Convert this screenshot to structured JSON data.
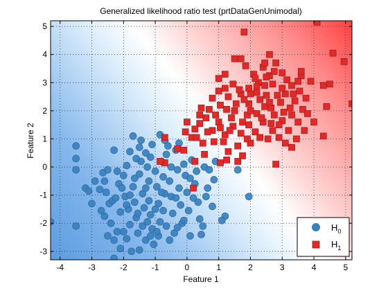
{
  "chart_data": {
    "type": "scatter",
    "title": "Generalized likelihood ratio test (prtDataGenUnimodal)",
    "xlabel": "Feature 1",
    "ylabel": "Feature 2",
    "xlim": [
      -4.3,
      5.2
    ],
    "ylim": [
      -3.3,
      5.2
    ],
    "xticks": [
      -4,
      -3,
      -2,
      -1,
      0,
      1,
      2,
      3,
      4,
      5
    ],
    "yticks": [
      -3,
      -2,
      -1,
      0,
      1,
      2,
      3,
      4,
      5
    ],
    "grid": true,
    "legend_position": "bottom-right",
    "background": "decision surface: blue (H0 region, lower-left) to red (H1 region, upper-right)",
    "series": [
      {
        "name": "H0",
        "label_base": "H",
        "label_sub": "0",
        "marker": "circle",
        "color": "#3a80bd",
        "points": [
          [
            -3.5,
            0.75
          ],
          [
            -3.5,
            0.3
          ],
          [
            -3.5,
            -0.1
          ],
          [
            -3.2,
            -0.75
          ],
          [
            -3.1,
            -0.85
          ],
          [
            -3.0,
            -1.3
          ],
          [
            -2.9,
            -0.5
          ],
          [
            -3.5,
            -2.1
          ],
          [
            -4.3,
            -1.95
          ],
          [
            -2.65,
            -0.2
          ],
          [
            -2.6,
            -0.5
          ],
          [
            -2.5,
            -0.1
          ],
          [
            -2.55,
            -0.9
          ],
          [
            -2.45,
            -1.3
          ],
          [
            -2.6,
            -1.75
          ],
          [
            -2.3,
            0.6
          ],
          [
            -2.2,
            -0.15
          ],
          [
            -2.15,
            -0.6
          ],
          [
            -2.35,
            -1.2
          ],
          [
            -2.1,
            -1.6
          ],
          [
            -2.4,
            -2.0
          ],
          [
            -2.2,
            -2.3
          ],
          [
            -2.5,
            -2.45
          ],
          [
            -2.3,
            -2.6
          ],
          [
            -2.1,
            -2.9
          ],
          [
            -2.0,
            -0.3
          ],
          [
            -1.9,
            0.05
          ],
          [
            -1.95,
            -1.05
          ],
          [
            -1.85,
            -1.5
          ],
          [
            -1.8,
            -2.05
          ],
          [
            -1.9,
            -2.55
          ],
          [
            -1.75,
            -3.0
          ],
          [
            -2.3,
            -3.25
          ],
          [
            -1.8,
            0.55
          ],
          [
            -1.7,
            -0.7
          ],
          [
            -1.65,
            -1.25
          ],
          [
            -1.6,
            -1.8
          ],
          [
            -1.55,
            -2.35
          ],
          [
            -1.7,
            1.1
          ],
          [
            -1.5,
            0.7
          ],
          [
            -1.45,
            0.2
          ],
          [
            -1.5,
            -0.25
          ],
          [
            -1.4,
            -0.95
          ],
          [
            -1.35,
            -1.45
          ],
          [
            -1.4,
            -2.1
          ],
          [
            -1.3,
            -2.6
          ],
          [
            -1.5,
            -2.95
          ],
          [
            -1.3,
            0.5
          ],
          [
            -1.25,
            0.0
          ],
          [
            -1.2,
            -0.5
          ],
          [
            -1.2,
            -1.2
          ],
          [
            -1.15,
            -1.7
          ],
          [
            -1.1,
            -2.2
          ],
          [
            -1.05,
            -2.75
          ],
          [
            -1.15,
            0.35
          ],
          [
            -1.0,
            -0.15
          ],
          [
            -0.95,
            -0.7
          ],
          [
            -0.9,
            -1.3
          ],
          [
            -0.85,
            -1.95
          ],
          [
            -0.9,
            -2.45
          ],
          [
            -0.85,
            1.15
          ],
          [
            -0.8,
            0.2
          ],
          [
            -0.75,
            -0.35
          ],
          [
            -0.7,
            -0.95
          ],
          [
            -0.75,
            -1.55
          ],
          [
            -0.65,
            -2.1
          ],
          [
            -0.6,
            0.75
          ],
          [
            -0.55,
            -0.5
          ],
          [
            -0.5,
            -1.05
          ],
          [
            -0.45,
            -1.65
          ],
          [
            -0.4,
            -2.35
          ],
          [
            -0.35,
            0.6
          ],
          [
            -0.3,
            -0.1
          ],
          [
            -0.25,
            -0.75
          ],
          [
            -0.2,
            -1.35
          ],
          [
            -0.15,
            -2.0
          ],
          [
            -0.25,
            0.85
          ],
          [
            -0.05,
            -0.3
          ],
          [
            0.0,
            -0.9
          ],
          [
            0.05,
            -1.55
          ],
          [
            0.1,
            -2.45
          ],
          [
            0.15,
            0.25
          ],
          [
            0.25,
            -0.6
          ],
          [
            0.35,
            -1.25
          ],
          [
            0.4,
            -1.85
          ],
          [
            0.55,
            0.0
          ],
          [
            0.65,
            -0.75
          ],
          [
            0.8,
            -1.4
          ],
          [
            0.9,
            0.2
          ],
          [
            0.5,
            -2.1
          ],
          [
            1.2,
            -1.75
          ],
          [
            1.6,
            -0.1
          ],
          [
            1.95,
            -1.05
          ],
          [
            1.1,
            -1.9
          ],
          [
            0.45,
            -2.4
          ],
          [
            -0.1,
            0.1
          ],
          [
            0.3,
            -0.15
          ],
          [
            -0.65,
            0.45
          ],
          [
            0.7,
            -0.1
          ],
          [
            -1.6,
            0.3
          ],
          [
            -2.05,
            -0.75
          ],
          [
            -1.25,
            -1.95
          ],
          [
            -0.55,
            -2.6
          ],
          [
            0.1,
            -0.4
          ],
          [
            -1.0,
            -1.5
          ],
          [
            -1.8,
            -1.0
          ],
          [
            -2.7,
            -1.55
          ],
          [
            -1.45,
            0.95
          ],
          [
            -0.35,
            -1.1
          ],
          [
            -1.1,
            0.8
          ],
          [
            -2.0,
            -2.3
          ],
          [
            -0.95,
            -2.3
          ],
          [
            -0.1,
            -1.9
          ],
          [
            0.6,
            -1.05
          ],
          [
            -0.8,
            -0.9
          ],
          [
            -1.65,
            -0.4
          ],
          [
            -2.25,
            -1.1
          ],
          [
            -1.3,
            -0.75
          ],
          [
            -0.5,
            0.0
          ],
          [
            0.2,
            -1.1
          ],
          [
            -1.9,
            -1.35
          ],
          [
            -1.15,
            -2.45
          ],
          [
            -0.3,
            -2.15
          ],
          [
            0.85,
            -0.45
          ],
          [
            -2.75,
            -0.8
          ],
          [
            -0.7,
            0.95
          ],
          [
            -1.55,
            -1.65
          ]
        ]
      },
      {
        "name": "H1",
        "label_base": "H",
        "label_sub": "1",
        "marker": "square",
        "color": "#e02a2a",
        "points": [
          [
            1.8,
            4.8
          ],
          [
            4.1,
            5.15
          ],
          [
            4.6,
            4.05
          ],
          [
            4.95,
            3.75
          ],
          [
            4.5,
            2.95
          ],
          [
            4.3,
            2.9
          ],
          [
            4.4,
            2.15
          ],
          [
            5.2,
            2.25
          ],
          [
            4.0,
            1.6
          ],
          [
            4.3,
            1.1
          ],
          [
            3.5,
            3.05
          ],
          [
            3.6,
            3.25
          ],
          [
            3.3,
            2.9
          ],
          [
            3.0,
            3.35
          ],
          [
            2.8,
            3.7
          ],
          [
            2.6,
            3.25
          ],
          [
            2.4,
            3.55
          ],
          [
            2.25,
            3.0
          ],
          [
            2.0,
            2.6
          ],
          [
            2.2,
            2.85
          ],
          [
            2.5,
            2.55
          ],
          [
            2.7,
            2.95
          ],
          [
            3.1,
            2.6
          ],
          [
            3.4,
            2.35
          ],
          [
            3.65,
            2.05
          ],
          [
            3.3,
            1.85
          ],
          [
            3.0,
            1.65
          ],
          [
            2.75,
            1.85
          ],
          [
            2.45,
            2.15
          ],
          [
            2.2,
            1.9
          ],
          [
            1.95,
            2.25
          ],
          [
            1.7,
            2.6
          ],
          [
            1.45,
            2.95
          ],
          [
            1.2,
            3.3
          ],
          [
            1.0,
            3.15
          ],
          [
            1.3,
            2.5
          ],
          [
            1.05,
            2.2
          ],
          [
            0.8,
            2.45
          ],
          [
            0.7,
            2.05
          ],
          [
            0.6,
            1.75
          ],
          [
            0.4,
            1.55
          ],
          [
            0.25,
            1.35
          ],
          [
            0.15,
            1.05
          ],
          [
            0.0,
            1.6
          ],
          [
            -0.05,
            1.25
          ],
          [
            0.3,
            1.05
          ],
          [
            0.5,
            0.85
          ],
          [
            0.8,
            1.3
          ],
          [
            1.0,
            1.6
          ],
          [
            1.2,
            1.15
          ],
          [
            1.45,
            1.45
          ],
          [
            1.7,
            1.2
          ],
          [
            1.95,
            1.5
          ],
          [
            2.15,
            1.25
          ],
          [
            2.4,
            1.6
          ],
          [
            2.7,
            1.3
          ],
          [
            2.9,
            1.05
          ],
          [
            3.2,
            1.3
          ],
          [
            3.5,
            1.6
          ],
          [
            3.8,
            1.9
          ],
          [
            2.0,
            0.85
          ],
          [
            1.6,
            0.75
          ],
          [
            1.3,
            0.55
          ],
          [
            1.05,
            0.15
          ],
          [
            0.55,
            0.45
          ],
          [
            0.25,
            0.2
          ],
          [
            -0.1,
            0.6
          ],
          [
            -0.7,
            0.15
          ],
          [
            -0.85,
            0.2
          ],
          [
            -0.7,
            1.05
          ],
          [
            -0.3,
            0.65
          ],
          [
            0.2,
            -0.75
          ],
          [
            1.25,
            0.25
          ],
          [
            1.75,
            0.4
          ],
          [
            1.6,
            0.2
          ],
          [
            2.8,
            0.1
          ],
          [
            3.3,
            0.7
          ],
          [
            3.1,
            0.85
          ],
          [
            1.5,
            3.85
          ],
          [
            1.7,
            3.85
          ],
          [
            2.6,
            4.0
          ],
          [
            1.85,
            3.6
          ],
          [
            1.2,
            2.8
          ],
          [
            1.5,
            2.0
          ],
          [
            1.9,
            1.85
          ],
          [
            2.3,
            2.4
          ],
          [
            2.65,
            2.1
          ],
          [
            2.95,
            2.3
          ],
          [
            3.25,
            2.1
          ],
          [
            3.55,
            2.7
          ],
          [
            3.75,
            2.45
          ],
          [
            3.9,
            3.05
          ],
          [
            2.1,
            3.3
          ],
          [
            2.45,
            2.9
          ],
          [
            2.85,
            2.55
          ],
          [
            1.65,
            2.75
          ],
          [
            1.4,
            1.75
          ],
          [
            0.9,
            1.85
          ],
          [
            0.45,
            2.1
          ],
          [
            1.15,
            0.9
          ],
          [
            1.9,
            1.0
          ],
          [
            2.55,
            1.0
          ],
          [
            3.05,
            1.95
          ],
          [
            3.45,
            1.0
          ],
          [
            2.2,
            2.65
          ],
          [
            2.75,
            3.4
          ],
          [
            3.15,
            3.1
          ],
          [
            1.0,
            2.7
          ],
          [
            0.65,
            1.25
          ],
          [
            1.35,
            1.3
          ],
          [
            2.35,
            1.75
          ],
          [
            2.0,
            2.0
          ],
          [
            2.6,
            2.3
          ],
          [
            3.6,
            3.4
          ],
          [
            1.8,
            2.4
          ],
          [
            1.25,
            2.05
          ],
          [
            0.85,
            0.9
          ],
          [
            2.5,
            3.2
          ],
          [
            3.0,
            2.8
          ],
          [
            2.3,
            1.05
          ],
          [
            1.55,
            2.25
          ],
          [
            2.9,
            1.5
          ],
          [
            1.05,
            1.4
          ],
          [
            3.35,
            2.6
          ],
          [
            2.15,
            3.15
          ],
          [
            0.4,
            1.85
          ],
          [
            1.75,
            1.6
          ],
          [
            2.45,
            3.7
          ],
          [
            3.7,
            1.3
          ],
          [
            2.65,
            1.55
          ],
          [
            1.95,
            2.8
          ]
        ]
      }
    ]
  }
}
